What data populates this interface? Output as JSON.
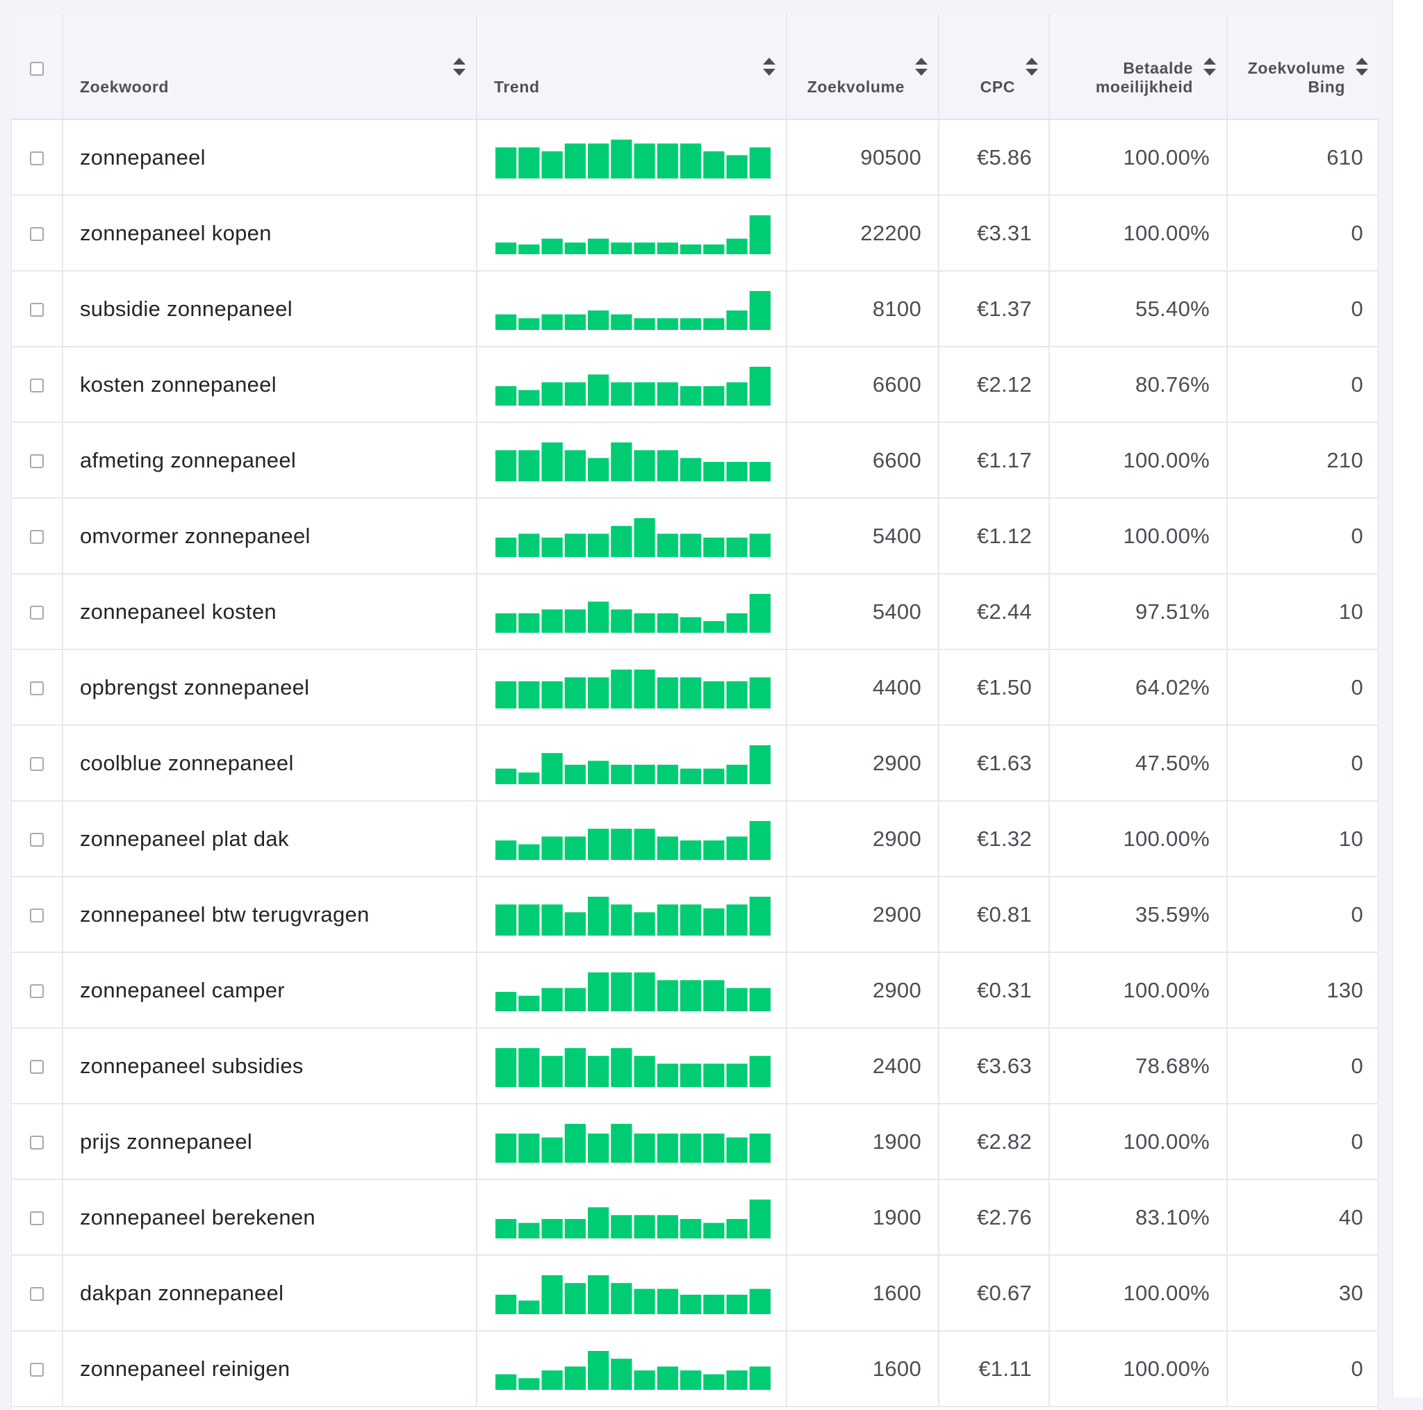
{
  "columns": {
    "keyword": "Zoekwoord",
    "trend": "Trend",
    "volume": "Zoekvolume",
    "cpc": "CPC",
    "difficulty_line1": "Betaalde",
    "difficulty_line2": "moeilijkheid",
    "bing_line1": "Zoekvolume",
    "bing_line2": "Bing"
  },
  "trend_color": "#00cc73",
  "sort_icon": "sort-up-down-icon",
  "rows": [
    {
      "keyword": "zonnepaneel",
      "volume": "90500",
      "cpc": "€5.86",
      "difficulty": "100.00%",
      "bing": "610",
      "trend": [
        8,
        8,
        7,
        9,
        9,
        10,
        9,
        9,
        9,
        7,
        6,
        8
      ]
    },
    {
      "keyword": "zonnepaneel kopen",
      "volume": "22200",
      "cpc": "€3.31",
      "difficulty": "100.00%",
      "bing": "0",
      "trend": [
        3,
        2.5,
        4,
        3,
        4,
        3,
        3,
        3,
        2.5,
        2.5,
        4,
        10
      ]
    },
    {
      "keyword": "subsidie zonnepaneel",
      "volume": "8100",
      "cpc": "€1.37",
      "difficulty": "55.40%",
      "bing": "0",
      "trend": [
        4,
        3,
        4,
        4,
        5,
        4,
        3,
        3,
        3,
        3,
        5,
        10
      ]
    },
    {
      "keyword": "kosten zonnepaneel",
      "volume": "6600",
      "cpc": "€2.12",
      "difficulty": "80.76%",
      "bing": "0",
      "trend": [
        5,
        4,
        6,
        6,
        8,
        6,
        6,
        6,
        5,
        5,
        6,
        10
      ]
    },
    {
      "keyword": "afmeting zonnepaneel",
      "volume": "6600",
      "cpc": "€1.17",
      "difficulty": "100.00%",
      "bing": "210",
      "trend": [
        8,
        8,
        10,
        8,
        6,
        10,
        8,
        8,
        6,
        5,
        5,
        5
      ]
    },
    {
      "keyword": "omvormer zonnepaneel",
      "volume": "5400",
      "cpc": "€1.12",
      "difficulty": "100.00%",
      "bing": "0",
      "trend": [
        5,
        6,
        5,
        6,
        6,
        8,
        10,
        6,
        6,
        5,
        5,
        6
      ]
    },
    {
      "keyword": "zonnepaneel kosten",
      "volume": "5400",
      "cpc": "€2.44",
      "difficulty": "97.51%",
      "bing": "10",
      "trend": [
        5,
        5,
        6,
        6,
        8,
        6,
        5,
        5,
        4,
        3,
        5,
        10
      ]
    },
    {
      "keyword": "opbrengst zonnepaneel",
      "volume": "4400",
      "cpc": "€1.50",
      "difficulty": "64.02%",
      "bing": "0",
      "trend": [
        7,
        7,
        7,
        8,
        8,
        10,
        10,
        8,
        8,
        7,
        7,
        8
      ]
    },
    {
      "keyword": "coolblue zonnepaneel",
      "volume": "2900",
      "cpc": "€1.63",
      "difficulty": "47.50%",
      "bing": "0",
      "trend": [
        4,
        3,
        8,
        5,
        6,
        5,
        5,
        5,
        4,
        4,
        5,
        10
      ]
    },
    {
      "keyword": "zonnepaneel plat dak",
      "volume": "2900",
      "cpc": "€1.32",
      "difficulty": "100.00%",
      "bing": "10",
      "trend": [
        5,
        4,
        6,
        6,
        8,
        8,
        8,
        6,
        5,
        5,
        6,
        10
      ]
    },
    {
      "keyword": "zonnepaneel btw terugvragen",
      "volume": "2900",
      "cpc": "€0.81",
      "difficulty": "35.59%",
      "bing": "0",
      "trend": [
        8,
        8,
        8,
        6,
        10,
        8,
        6,
        8,
        8,
        7,
        8,
        10
      ]
    },
    {
      "keyword": "zonnepaneel camper",
      "volume": "2900",
      "cpc": "€0.31",
      "difficulty": "100.00%",
      "bing": "130",
      "trend": [
        5,
        4,
        6,
        6,
        10,
        10,
        10,
        8,
        8,
        8,
        6,
        6
      ]
    },
    {
      "keyword": "zonnepaneel subsidies",
      "volume": "2400",
      "cpc": "€3.63",
      "difficulty": "78.68%",
      "bing": "0",
      "trend": [
        10,
        10,
        8,
        10,
        8,
        10,
        8,
        6,
        6,
        6,
        6,
        8
      ]
    },
    {
      "keyword": "prijs zonnepaneel",
      "volume": "1900",
      "cpc": "€2.82",
      "difficulty": "100.00%",
      "bing": "0",
      "trend": [
        7.5,
        7.5,
        6.5,
        10,
        7.5,
        10,
        7.5,
        7.5,
        7.5,
        7.5,
        6.5,
        7.5
      ]
    },
    {
      "keyword": "zonnepaneel berekenen",
      "volume": "1900",
      "cpc": "€2.76",
      "difficulty": "83.10%",
      "bing": "40",
      "trend": [
        5,
        4,
        5,
        5,
        8,
        6,
        6,
        6,
        5,
        4,
        5,
        10
      ]
    },
    {
      "keyword": "dakpan zonnepaneel",
      "volume": "1600",
      "cpc": "€0.67",
      "difficulty": "100.00%",
      "bing": "30",
      "trend": [
        5,
        3.5,
        10,
        8,
        10,
        8,
        6.5,
        6.5,
        5,
        5,
        5,
        6.5
      ]
    },
    {
      "keyword": "zonnepaneel reinigen",
      "volume": "1600",
      "cpc": "€1.11",
      "difficulty": "100.00%",
      "bing": "0",
      "trend": [
        4,
        3,
        5,
        6,
        10,
        8,
        5,
        6,
        5,
        4,
        5,
        6
      ]
    }
  ]
}
